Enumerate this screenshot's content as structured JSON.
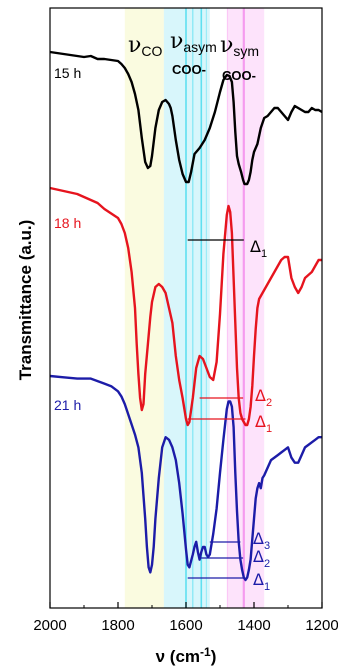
{
  "chart_data": {
    "type": "line",
    "xlabel_main": "ν (cm",
    "xlabel_sup": "-1",
    "xlabel_close": ")",
    "ylabel": "Transmittance (a.u.)",
    "xlim": [
      2000,
      1200
    ],
    "xticks": [
      "2000",
      "1800",
      "1600",
      "1400",
      "1200"
    ],
    "bands": {
      "co": {
        "label": "ν",
        "sub": "CO",
        "range": [
          1780,
          1665
        ],
        "color": "#fafbe0"
      },
      "asym": {
        "label": "ν",
        "sub": "asym",
        "sub2": "COO-",
        "range": [
          1665,
          1530
        ],
        "color": "#d8f6fb"
      },
      "sym": {
        "label": "ν",
        "sub": "sym",
        "sub2": "COO-",
        "range": [
          1478,
          1370
        ],
        "color": "#fde3fb"
      }
    },
    "series": [
      {
        "name": "15 h",
        "color": "#000000",
        "x": [
          2000,
          1940,
          1900,
          1880,
          1860,
          1840,
          1820,
          1800,
          1790,
          1780,
          1770,
          1760,
          1750,
          1740,
          1730,
          1720,
          1712,
          1705,
          1700,
          1690,
          1680,
          1670,
          1660,
          1650,
          1645,
          1640,
          1630,
          1620,
          1610,
          1600,
          1592,
          1585,
          1575,
          1560,
          1545,
          1530,
          1515,
          1500,
          1490,
          1480,
          1472,
          1465,
          1460,
          1455,
          1450,
          1445,
          1438,
          1432,
          1428,
          1424,
          1420,
          1415,
          1410,
          1405,
          1400,
          1395,
          1390,
          1385,
          1380,
          1370,
          1360,
          1350,
          1340,
          1330,
          1320,
          1310,
          1300,
          1290,
          1280,
          1270,
          1260,
          1250,
          1240,
          1230,
          1220,
          1210,
          1200
        ],
        "y": [
          0.0,
          0.015,
          0.025,
          0.02,
          0.035,
          0.035,
          0.04,
          0.045,
          0.06,
          0.08,
          0.11,
          0.15,
          0.21,
          0.29,
          0.43,
          0.55,
          0.58,
          0.57,
          0.52,
          0.38,
          0.29,
          0.25,
          0.24,
          0.26,
          0.28,
          0.32,
          0.44,
          0.54,
          0.61,
          0.65,
          0.65,
          0.6,
          0.51,
          0.48,
          0.44,
          0.38,
          0.3,
          0.2,
          0.14,
          0.115,
          0.12,
          0.15,
          0.25,
          0.4,
          0.52,
          0.56,
          0.6,
          0.64,
          0.66,
          0.66,
          0.66,
          0.64,
          0.6,
          0.54,
          0.5,
          0.48,
          0.46,
          0.42,
          0.38,
          0.33,
          0.32,
          0.3,
          0.28,
          0.28,
          0.3,
          0.32,
          0.34,
          0.3,
          0.27,
          0.28,
          0.29,
          0.3,
          0.3,
          0.28,
          0.29,
          0.29,
          0.3
        ],
        "label": "15 h",
        "deltas": [
          {
            "sym": "Δ",
            "sub": "1",
            "from": 1595,
            "to": 1430
          }
        ]
      },
      {
        "name": "18 h",
        "color": "#e6141e",
        "x": [
          2000,
          1960,
          1920,
          1900,
          1880,
          1860,
          1840,
          1820,
          1800,
          1790,
          1780,
          1770,
          1760,
          1750,
          1745,
          1740,
          1735,
          1730,
          1725,
          1720,
          1712,
          1705,
          1700,
          1690,
          1680,
          1670,
          1660,
          1650,
          1640,
          1630,
          1620,
          1610,
          1600,
          1595,
          1590,
          1580,
          1570,
          1560,
          1550,
          1540,
          1530,
          1520,
          1510,
          1500,
          1490,
          1480,
          1475,
          1470,
          1465,
          1460,
          1455,
          1450,
          1445,
          1440,
          1435,
          1430,
          1425,
          1420,
          1415,
          1410,
          1405,
          1400,
          1395,
          1390,
          1385,
          1380,
          1370,
          1360,
          1350,
          1340,
          1330,
          1320,
          1310,
          1300,
          1290,
          1280,
          1270,
          1260,
          1250,
          1240,
          1230,
          1220,
          1210,
          1200
        ],
        "y": [
          0.0,
          0.01,
          0.02,
          0.03,
          0.04,
          0.05,
          0.07,
          0.085,
          0.1,
          0.12,
          0.15,
          0.2,
          0.28,
          0.4,
          0.52,
          0.62,
          0.7,
          0.74,
          0.72,
          0.62,
          0.52,
          0.43,
          0.38,
          0.33,
          0.32,
          0.33,
          0.35,
          0.4,
          0.45,
          0.56,
          0.64,
          0.7,
          0.77,
          0.79,
          0.78,
          0.7,
          0.6,
          0.56,
          0.57,
          0.6,
          0.63,
          0.64,
          0.58,
          0.42,
          0.22,
          0.09,
          0.06,
          0.08,
          0.15,
          0.3,
          0.45,
          0.6,
          0.7,
          0.75,
          0.77,
          0.78,
          0.79,
          0.79,
          0.77,
          0.73,
          0.66,
          0.56,
          0.47,
          0.4,
          0.37,
          0.36,
          0.34,
          0.32,
          0.3,
          0.28,
          0.26,
          0.24,
          0.23,
          0.23,
          0.3,
          0.33,
          0.35,
          0.33,
          0.3,
          0.29,
          0.28,
          0.26,
          0.24,
          0.24
        ],
        "label": "18 h",
        "deltas": [
          {
            "sym": "Δ",
            "sub": "2",
            "from": 1560,
            "to": 1432
          },
          {
            "sym": "Δ",
            "sub": "1",
            "from": 1595,
            "to": 1425
          }
        ]
      },
      {
        "name": "21 h",
        "color": "#1c1ca8",
        "x": [
          2000,
          1960,
          1920,
          1900,
          1880,
          1860,
          1840,
          1820,
          1800,
          1790,
          1780,
          1770,
          1760,
          1750,
          1740,
          1730,
          1725,
          1720,
          1715,
          1710,
          1705,
          1700,
          1695,
          1690,
          1680,
          1670,
          1660,
          1650,
          1640,
          1630,
          1620,
          1610,
          1600,
          1595,
          1590,
          1580,
          1575,
          1570,
          1565,
          1560,
          1555,
          1550,
          1545,
          1540,
          1535,
          1530,
          1520,
          1510,
          1500,
          1490,
          1480,
          1475,
          1470,
          1465,
          1460,
          1455,
          1450,
          1445,
          1440,
          1435,
          1430,
          1425,
          1420,
          1415,
          1410,
          1405,
          1400,
          1395,
          1390,
          1385,
          1380,
          1375,
          1370,
          1360,
          1350,
          1340,
          1330,
          1320,
          1310,
          1300,
          1290,
          1280,
          1270,
          1260,
          1250,
          1240,
          1230,
          1220,
          1210,
          1200
        ],
        "y": [
          0.0,
          0.005,
          0.01,
          0.01,
          0.01,
          0.02,
          0.03,
          0.04,
          0.06,
          0.08,
          0.11,
          0.15,
          0.19,
          0.23,
          0.28,
          0.38,
          0.47,
          0.56,
          0.67,
          0.75,
          0.77,
          0.74,
          0.67,
          0.56,
          0.4,
          0.28,
          0.24,
          0.25,
          0.28,
          0.33,
          0.42,
          0.54,
          0.68,
          0.74,
          0.75,
          0.7,
          0.67,
          0.65,
          0.69,
          0.72,
          0.69,
          0.67,
          0.67,
          0.7,
          0.71,
          0.7,
          0.62,
          0.52,
          0.38,
          0.25,
          0.13,
          0.1,
          0.1,
          0.12,
          0.2,
          0.38,
          0.53,
          0.65,
          0.72,
          0.76,
          0.79,
          0.8,
          0.79,
          0.76,
          0.72,
          0.64,
          0.56,
          0.48,
          0.44,
          0.42,
          0.44,
          0.4,
          0.39,
          0.36,
          0.33,
          0.32,
          0.31,
          0.3,
          0.29,
          0.28,
          0.32,
          0.34,
          0.34,
          0.31,
          0.28,
          0.27,
          0.26,
          0.25,
          0.24,
          0.24
        ],
        "label": "21 h",
        "deltas": [
          {
            "sym": "Δ",
            "sub": "3",
            "from": 1530,
            "to": 1440
          },
          {
            "sym": "Δ",
            "sub": "2",
            "from": 1560,
            "to": 1432
          },
          {
            "sym": "Δ",
            "sub": "1",
            "from": 1595,
            "to": 1425
          }
        ]
      }
    ],
    "grid": false
  }
}
